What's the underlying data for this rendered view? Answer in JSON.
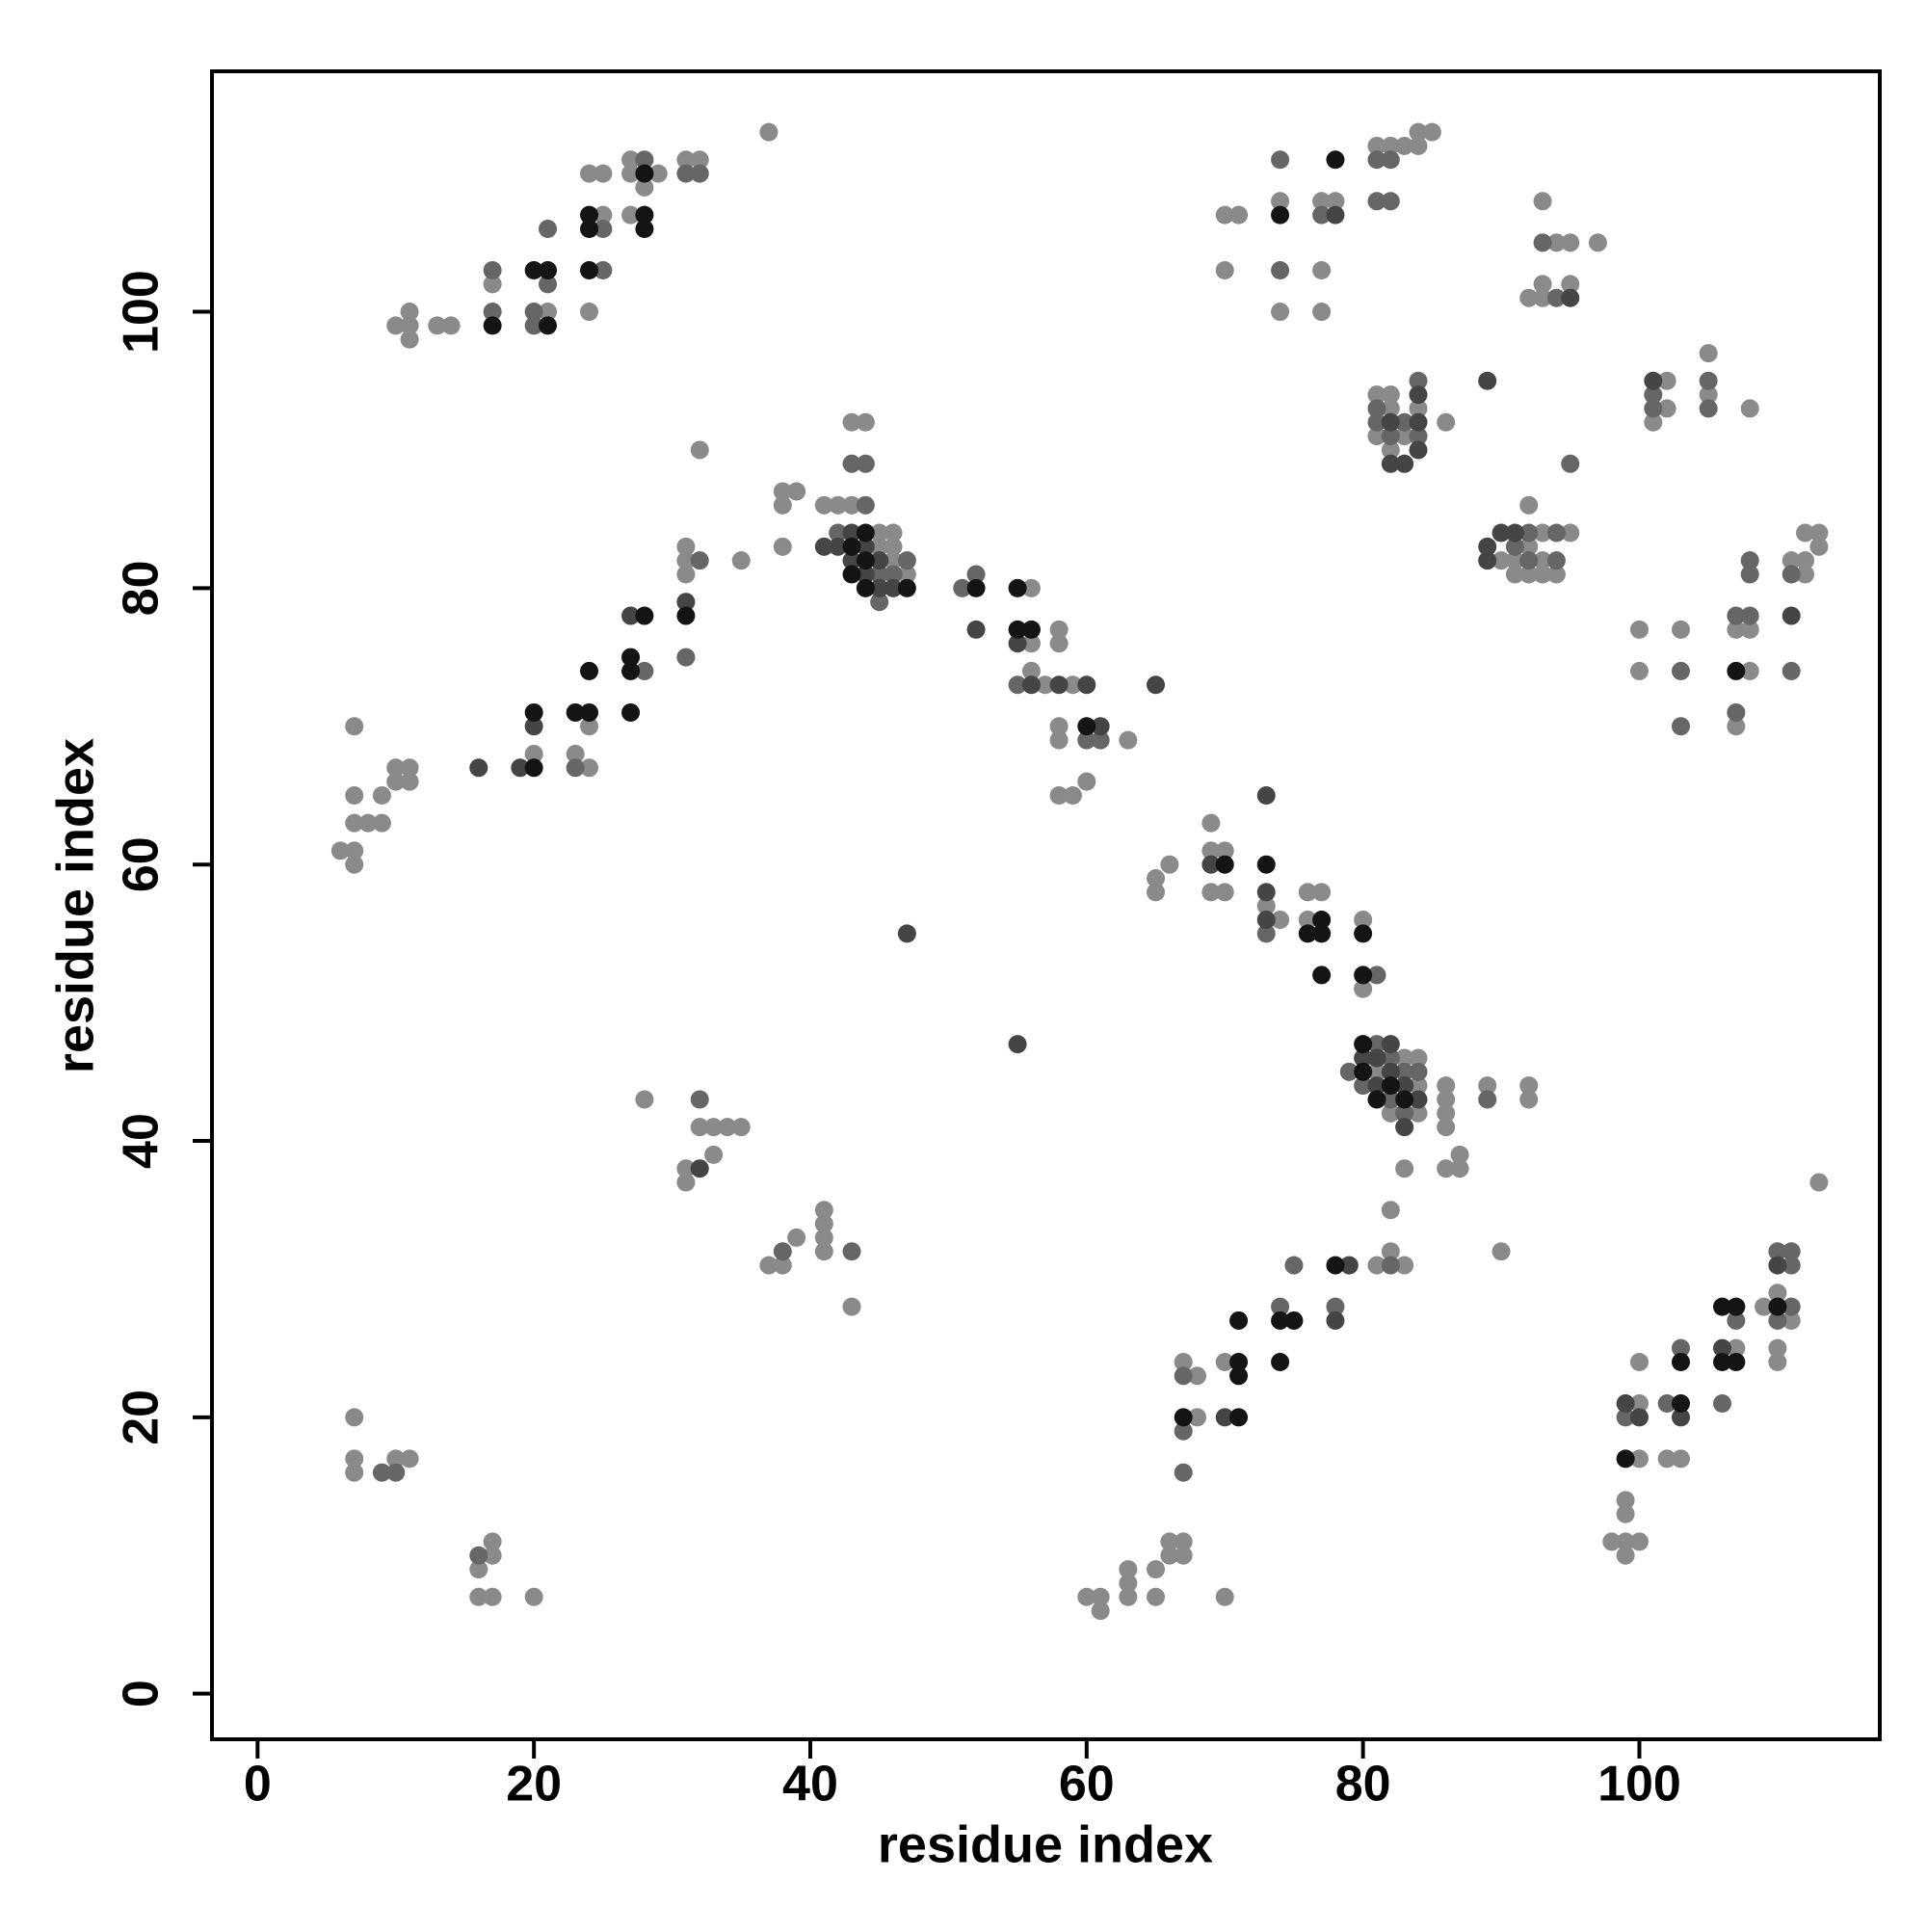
{
  "chart_data": {
    "type": "scatter",
    "xlabel": "residue index",
    "ylabel": "residue index",
    "xlim": [
      -3.3,
      117.4
    ],
    "ylim": [
      -3.3,
      117.4
    ],
    "xticks": [
      0,
      20,
      40,
      60,
      80,
      100
    ],
    "yticks": [
      0,
      20,
      40,
      60,
      80,
      100
    ],
    "grid": false,
    "series": [
      {
        "color": "#8a8a8a",
        "x": [
          10,
          11,
          11,
          11,
          13,
          14,
          17,
          21,
          24,
          24,
          25,
          25,
          27,
          27,
          27,
          28,
          29,
          31,
          32,
          37,
          6,
          7,
          7,
          7,
          7,
          7,
          8,
          9,
          9,
          10,
          10,
          11,
          11,
          20,
          23,
          24,
          24,
          31,
          31,
          31,
          32,
          35,
          38,
          38,
          38,
          39,
          41,
          42,
          43,
          43,
          44,
          45,
          45,
          46,
          46,
          46,
          47,
          56,
          56,
          56,
          57,
          58,
          58,
          59,
          58,
          58,
          58,
          59,
          60,
          63,
          65,
          65,
          66,
          69,
          69,
          69,
          70,
          70,
          73,
          74,
          76,
          76,
          77,
          80,
          80,
          81,
          82,
          83,
          84,
          84,
          84,
          86,
          86,
          86,
          86,
          86,
          87,
          87,
          89,
          92,
          92,
          83,
          7,
          7,
          7,
          10,
          11,
          16,
          16,
          17,
          17,
          17,
          20,
          28,
          31,
          31,
          32,
          33,
          33,
          34,
          35,
          37,
          38,
          39,
          41,
          41,
          41,
          41,
          43,
          60,
          61,
          61,
          63,
          63,
          63,
          65,
          65,
          66,
          66,
          67,
          67,
          67,
          68,
          68,
          70,
          70,
          81,
          82,
          82,
          83,
          90,
          98,
          99,
          99,
          99,
          99,
          100,
          100,
          100,
          100,
          102,
          103,
          107,
          109,
          110,
          110,
          110,
          111,
          113,
          70,
          70,
          71,
          74,
          74,
          77,
          77,
          77,
          78,
          81,
          82,
          83,
          84,
          84,
          85,
          81,
          81,
          82,
          82,
          82,
          83,
          84,
          86,
          90,
          91,
          91,
          92,
          92,
          92,
          93,
          93,
          93,
          94,
          95,
          92,
          93,
          93,
          93,
          94,
          95,
          95,
          97,
          101,
          102,
          102,
          105,
          105,
          108,
          100,
          100,
          103,
          107,
          107,
          108,
          108,
          111,
          112,
          112,
          112,
          113,
          113
        ],
        "values": [
          99,
          99,
          100,
          98,
          99,
          99,
          102,
          100,
          100,
          110,
          107,
          110,
          107,
          110,
          111,
          109,
          110,
          111,
          111,
          113,
          61,
          60,
          61,
          63,
          65,
          70,
          63,
          63,
          65,
          66,
          67,
          66,
          67,
          68,
          68,
          67,
          70,
          81,
          82,
          83,
          90,
          82,
          83,
          86,
          87,
          87,
          86,
          86,
          86,
          92,
          92,
          83,
          84,
          82,
          83,
          84,
          81,
          80,
          76,
          74,
          73,
          77,
          76,
          73,
          70,
          69,
          65,
          65,
          66,
          69,
          58,
          59,
          60,
          58,
          61,
          63,
          58,
          61,
          57,
          56,
          58,
          56,
          58,
          56,
          51,
          45,
          42,
          46,
          46,
          44,
          42,
          44,
          43,
          42,
          41,
          38,
          38,
          39,
          44,
          44,
          43,
          38,
          20,
          17,
          16,
          17,
          17,
          9,
          7,
          11,
          10,
          7,
          7,
          43,
          38,
          37,
          41,
          41,
          39,
          41,
          41,
          31,
          31,
          33,
          35,
          34,
          33,
          32,
          28,
          7,
          7,
          6,
          9,
          8,
          7,
          9,
          7,
          11,
          10,
          11,
          10,
          24,
          23,
          20,
          24,
          7,
          31,
          35,
          32,
          31,
          32,
          11,
          14,
          13,
          11,
          10,
          11,
          24,
          21,
          17,
          17,
          17,
          25,
          28,
          29,
          25,
          24,
          27,
          37,
          107,
          103,
          107,
          108,
          100,
          108,
          103,
          100,
          108,
          112,
          112,
          112,
          113,
          112,
          113,
          94,
          91,
          94,
          93,
          90,
          91,
          93,
          92,
          82,
          82,
          81,
          86,
          83,
          81,
          84,
          82,
          81,
          81,
          84,
          101,
          108,
          102,
          101,
          105,
          105,
          102,
          105,
          92,
          95,
          93,
          97,
          94,
          93,
          77,
          74,
          77,
          77,
          70,
          77,
          74,
          82,
          82,
          81,
          84,
          84,
          83
        ]
      },
      {
        "color": "#666666",
        "x": [
          17,
          17,
          20,
          20,
          21,
          21,
          25,
          25,
          28,
          31,
          32,
          23,
          28,
          31,
          32,
          42,
          43,
          44,
          44,
          45,
          45,
          46,
          47,
          51,
          52,
          55,
          60,
          61,
          73,
          81,
          79,
          80,
          81,
          82,
          82,
          83,
          83,
          84,
          89,
          9,
          10,
          16,
          32,
          38,
          43,
          67,
          67,
          67,
          74,
          75,
          78,
          82,
          99,
          102,
          103,
          106,
          107,
          110,
          110,
          111,
          111,
          111,
          74,
          74,
          77,
          81,
          81,
          82,
          82,
          81,
          81,
          82,
          83,
          84,
          84,
          91,
          92,
          92,
          94,
          94,
          95,
          93,
          94,
          101,
          101,
          105,
          105,
          103,
          103,
          107,
          107,
          108,
          108,
          108,
          111,
          111
        ],
        "values": [
          100,
          103,
          99,
          100,
          102,
          106,
          103,
          106,
          111,
          110,
          110,
          67,
          74,
          75,
          82,
          84,
          89,
          86,
          89,
          79,
          81,
          81,
          82,
          80,
          81,
          73,
          69,
          69,
          55,
          52,
          45,
          44,
          47,
          46,
          43,
          45,
          42,
          45,
          43,
          16,
          16,
          10,
          43,
          32,
          32,
          23,
          19,
          16,
          28,
          31,
          28,
          31,
          20,
          21,
          25,
          21,
          27,
          32,
          27,
          32,
          31,
          28,
          111,
          103,
          107,
          111,
          108,
          111,
          108,
          93,
          92,
          91,
          92,
          95,
          91,
          83,
          84,
          82,
          84,
          82,
          89,
          105,
          101,
          94,
          93,
          95,
          93,
          74,
          70,
          78,
          71,
          82,
          81,
          78,
          81,
          74
        ]
      },
      {
        "color": "#454545",
        "x": [
          31,
          27,
          16,
          19,
          20,
          41,
          42,
          43,
          43,
          44,
          44,
          45,
          45,
          46,
          52,
          55,
          56,
          58,
          60,
          61,
          65,
          47,
          55,
          69,
          73,
          73,
          73,
          80,
          81,
          81,
          82,
          82,
          83,
          83,
          84,
          32,
          70,
          78,
          79,
          99,
          100,
          103,
          106,
          110,
          78,
          82,
          82,
          83,
          84,
          84,
          84,
          89,
          89,
          89,
          90,
          91,
          95,
          101,
          111
        ],
        "values": [
          79,
          78,
          67,
          67,
          70,
          83,
          83,
          82,
          84,
          81,
          83,
          80,
          82,
          80,
          77,
          76,
          73,
          73,
          73,
          70,
          73,
          55,
          47,
          60,
          65,
          58,
          56,
          46,
          46,
          44,
          47,
          45,
          44,
          41,
          43,
          38,
          20,
          27,
          31,
          21,
          20,
          20,
          25,
          31,
          107,
          92,
          89,
          89,
          94,
          92,
          90,
          95,
          83,
          82,
          84,
          84,
          101,
          95,
          78
        ]
      },
      {
        "color": "#141414",
        "x": [
          17,
          20,
          21,
          21,
          24,
          24,
          24,
          28,
          28,
          28,
          20,
          20,
          23,
          24,
          24,
          27,
          27,
          27,
          28,
          31,
          43,
          43,
          44,
          44,
          44,
          47,
          52,
          55,
          55,
          56,
          60,
          70,
          73,
          76,
          77,
          77,
          77,
          80,
          80,
          80,
          80,
          81,
          82,
          83,
          67,
          71,
          71,
          71,
          71,
          74,
          74,
          75,
          78,
          99,
          103,
          103,
          106,
          106,
          107,
          107,
          110,
          74,
          78,
          107
        ],
        "values": [
          99,
          103,
          99,
          103,
          103,
          106,
          107,
          106,
          107,
          110,
          67,
          71,
          71,
          71,
          74,
          71,
          74,
          75,
          78,
          78,
          81,
          83,
          80,
          82,
          84,
          80,
          80,
          80,
          77,
          77,
          70,
          60,
          60,
          55,
          56,
          55,
          52,
          55,
          52,
          47,
          45,
          43,
          44,
          43,
          20,
          27,
          24,
          23,
          20,
          27,
          24,
          27,
          31,
          17,
          24,
          21,
          28,
          24,
          28,
          24,
          28,
          107,
          111,
          74
        ]
      }
    ]
  }
}
